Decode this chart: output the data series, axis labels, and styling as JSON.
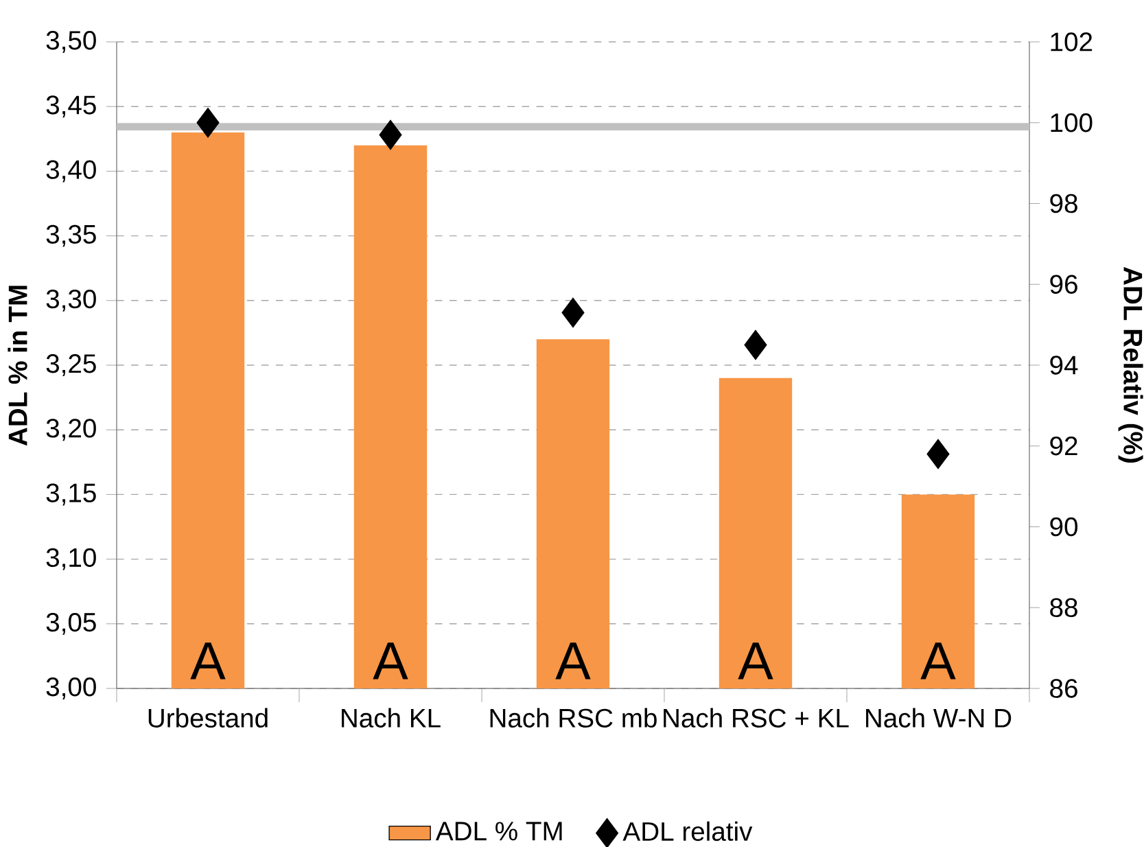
{
  "chart_data": {
    "type": "bar",
    "categories": [
      "Urbestand",
      "Nach KL",
      "Nach RSC mb",
      "Nach RSC + KL",
      "Nach W-N D"
    ],
    "series": [
      {
        "name": "ADL % TM",
        "color": "#f79646",
        "values": [
          3.43,
          3.42,
          3.27,
          3.24,
          3.15
        ]
      },
      {
        "name": "ADL relativ",
        "type": "scatter",
        "axis": "y2",
        "marker": "diamond",
        "color": "#000000",
        "values": [
          100.0,
          99.7,
          95.3,
          94.5,
          91.8
        ]
      }
    ],
    "ylabel": "ADL % in TM",
    "y2label": "ADL Relativ (%)",
    "ylim": [
      3.0,
      3.5
    ],
    "yticks": [
      {
        "value": 3.0,
        "label": "3,00"
      },
      {
        "value": 3.05,
        "label": "3,05"
      },
      {
        "value": 3.1,
        "label": "3,10"
      },
      {
        "value": 3.15,
        "label": "3,15"
      },
      {
        "value": 3.2,
        "label": "3,20"
      },
      {
        "value": 3.25,
        "label": "3,25"
      },
      {
        "value": 3.3,
        "label": "3,30"
      },
      {
        "value": 3.35,
        "label": "3,35"
      },
      {
        "value": 3.4,
        "label": "3,40"
      },
      {
        "value": 3.45,
        "label": "3,45"
      },
      {
        "value": 3.5,
        "label": "3,50"
      }
    ],
    "y2lim": [
      86,
      102
    ],
    "y2ticks": [
      86,
      88,
      90,
      92,
      94,
      96,
      98,
      100,
      102
    ],
    "ref_lines": [
      {
        "axis": "y2",
        "value": 99.9,
        "color": "#c0c0c0"
      }
    ],
    "annotations": [
      "A",
      "A",
      "A",
      "A",
      "A"
    ],
    "grid": "y",
    "legend": "bottom"
  }
}
